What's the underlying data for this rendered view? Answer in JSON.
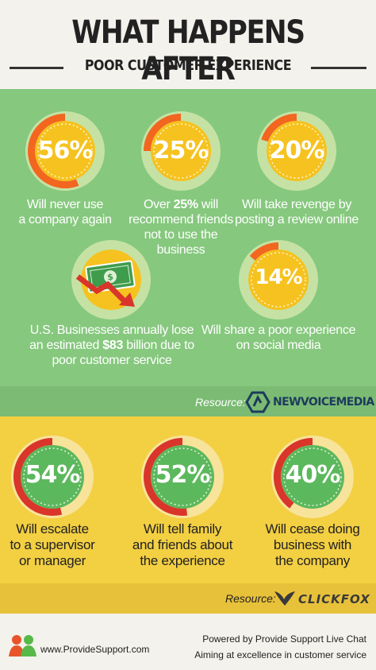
{
  "header": {
    "title": "WHAT HAPPENS AFTER",
    "subtitle": "POOR CUSTOMER EXPERIENCE"
  },
  "green_section": {
    "stats": [
      {
        "value": 56,
        "label": "56%",
        "caption_lines": [
          "Will never use",
          "a company again"
        ],
        "bold": ""
      },
      {
        "value": 25,
        "label": "25%",
        "caption_pre": "Over ",
        "bold": "25%",
        "caption_post": " will",
        "caption_lines": [
          "recommend friends",
          "not to use the",
          "business"
        ]
      },
      {
        "value": 20,
        "label": "20%",
        "caption_lines": [
          "Will take revenge by",
          "posting a review online"
        ]
      },
      {
        "value": 14,
        "label": "14%",
        "caption_lines": [
          "Will share a poor experience",
          "on social media"
        ]
      }
    ],
    "money": {
      "icon": "money-loss-icon",
      "line1": "U.S. Businesses annually lose",
      "line2_pre": "an estimated ",
      "line2_bold": "$83",
      "line2_post": " billion due to",
      "line3": "poor customer service"
    },
    "resource_label": "Resource:",
    "resource_brand": "NEWVOICEMEDIA"
  },
  "yellow_section": {
    "stats": [
      {
        "value": 54,
        "label": "54%",
        "caption_lines": [
          "Will escalate",
          "to a supervisor",
          "or manager"
        ]
      },
      {
        "value": 52,
        "label": "52%",
        "caption_lines": [
          "Will tell family",
          "and friends about",
          "the experience"
        ]
      },
      {
        "value": 40,
        "label": "40%",
        "caption_lines": [
          "Will cease doing",
          "business with",
          "the company"
        ]
      }
    ],
    "resource_label": "Resource:",
    "resource_brand": "CLICKFOX"
  },
  "footer": {
    "logo_icon": "people-logo-icon",
    "site": "www.ProvideSupport.com",
    "powered": "Powered by Provide Support Live Chat",
    "tagline": "Aiming at excellence in customer service"
  },
  "colors": {
    "green_bg": "#86c87e",
    "yellow_bg": "#f3cf42",
    "orange": "#f29a1e",
    "red": "#d9352a",
    "donut_green": "#5cb85c"
  }
}
